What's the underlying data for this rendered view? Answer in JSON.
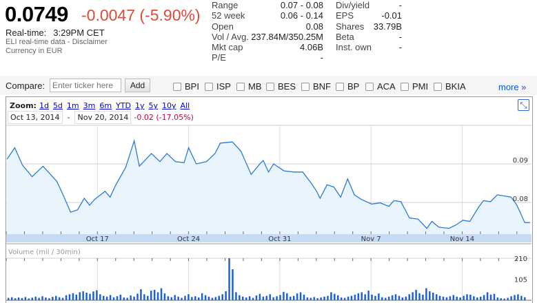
{
  "quote": {
    "price": "0.0749",
    "change": "-0.0047 (-5.90%)",
    "realtime_label": "Real-time:",
    "time": "3:29PM CET",
    "source": "ELI real-time data - Disclaimer",
    "currency": "Currency in EUR"
  },
  "stats_left": [
    {
      "label": "Range",
      "value": "0.07 - 0.08"
    },
    {
      "label": "52 week",
      "value": "0.06 - 0.14"
    },
    {
      "label": "Open",
      "value": "0.08"
    },
    {
      "label": "Vol / Avg.",
      "value": "237.84M/350.25M"
    },
    {
      "label": "Mkt cap",
      "value": "4.06B"
    },
    {
      "label": "P/E",
      "value": "-"
    }
  ],
  "stats_right": [
    {
      "label": "Div/yield",
      "value": "-"
    },
    {
      "label": "EPS",
      "value": "-0.01"
    },
    {
      "label": "Shares",
      "value": "33.79B"
    },
    {
      "label": "Beta",
      "value": "-"
    },
    {
      "label": "Inst. own",
      "value": "-"
    }
  ],
  "compare": {
    "label": "Compare:",
    "placeholder": "Enter ticker here",
    "add": "Add",
    "tickers": [
      "BPI",
      "ISP",
      "MB",
      "BES",
      "BNF",
      "BP",
      "ACA",
      "PMI",
      "BKIA"
    ],
    "more": "more »"
  },
  "chart": {
    "zoom_label": "Zoom:",
    "zoom_options": [
      "1d",
      "5d",
      "1m",
      "3m",
      "6m",
      "YTD",
      "1y",
      "5y",
      "10y",
      "All"
    ],
    "from": "Oct 13, 2014",
    "sep": "-",
    "to": "Nov 20, 2014",
    "range_change": "-0.02 (-17.05%)",
    "volume_label": "Volume (mil / 30min)"
  },
  "colors": {
    "line": "#2a7ad8",
    "fill": "#eaf4fd",
    "negative": "#dd4b39",
    "axis_band": "#c6dbf3",
    "volume": "#1a5fd8"
  },
  "chart_data": {
    "type": "line",
    "x_unit": "trading days from Oct 13, 2014",
    "xlim": [
      -1,
      27.8
    ],
    "ylim": [
      0.0718,
      0.1
    ],
    "x_ticks": [
      {
        "x": 4,
        "label": "Oct 17"
      },
      {
        "x": 9,
        "label": "Oct 24"
      },
      {
        "x": 14,
        "label": "Oct 31"
      },
      {
        "x": 19,
        "label": "Nov 7"
      },
      {
        "x": 24,
        "label": "Nov 14"
      }
    ],
    "y_ticks": [
      {
        "y": 0.09,
        "label": "0.09"
      },
      {
        "y": 0.08,
        "label": "0.08"
      }
    ],
    "x": [
      -0.96,
      -0.53,
      -0.11,
      0.42,
      1.02,
      1.77,
      2.06,
      2.53,
      2.91,
      3.28,
      3.57,
      3.85,
      4.42,
      4.7,
      4.98,
      5.55,
      6.02,
      6.3,
      6.96,
      7.43,
      7.81,
      8.28,
      8.75,
      9.0,
      9.42,
      9.98,
      10.45,
      10.74,
      11.4,
      11.87,
      12.43,
      12.91,
      13.09,
      13.38,
      13.66,
      14.23,
      14.79,
      15.26,
      15.74,
      16.02,
      16.21,
      16.59,
      16.96,
      17.34,
      17.72,
      18.09,
      18.47,
      19.04,
      19.51,
      19.98,
      20.26,
      20.64,
      21.11,
      21.58,
      22.06,
      22.34,
      22.72,
      23.28,
      23.66,
      24.04,
      24.42,
      24.89,
      25.17,
      25.55,
      25.92,
      26.68,
      26.96,
      27.15,
      27.43,
      27.72
    ],
    "price": [
      0.0912,
      0.0942,
      0.0897,
      0.0867,
      0.0894,
      0.0855,
      0.0826,
      0.0775,
      0.0781,
      0.0811,
      0.0793,
      0.0808,
      0.0829,
      0.0814,
      0.0843,
      0.0891,
      0.096,
      0.0894,
      0.0927,
      0.0906,
      0.0927,
      0.0906,
      0.0903,
      0.0942,
      0.09,
      0.0906,
      0.0927,
      0.0954,
      0.0957,
      0.0933,
      0.0873,
      0.09,
      0.0909,
      0.0879,
      0.09,
      0.0882,
      0.0879,
      0.0879,
      0.0849,
      0.0829,
      0.0811,
      0.0846,
      0.084,
      0.0814,
      0.0861,
      0.082,
      0.0808,
      0.0796,
      0.0799,
      0.079,
      0.0805,
      0.0802,
      0.076,
      0.0757,
      0.0733,
      0.0751,
      0.0736,
      0.0733,
      0.0742,
      0.0754,
      0.0751,
      0.0787,
      0.0805,
      0.0802,
      0.082,
      0.0814,
      0.0796,
      0.0778,
      0.0748,
      0.0748
    ],
    "volume": {
      "ylim": [
        0,
        210
      ],
      "y_ticks": [
        {
          "y": 210,
          "label": "210"
        },
        {
          "y": 105,
          "label": "105"
        }
      ],
      "values": [
        12,
        15,
        10,
        14,
        11,
        16,
        9,
        13,
        18,
        12,
        20,
        14,
        10,
        17,
        22,
        15,
        12,
        25,
        30,
        35,
        28,
        40,
        45,
        38,
        32,
        44,
        50,
        30,
        22,
        18,
        26,
        15,
        20,
        28,
        14,
        12,
        24,
        18,
        33,
        55,
        30,
        22,
        48,
        52,
        40,
        60,
        34,
        20,
        15,
        26,
        18,
        12,
        22,
        30,
        16,
        20,
        14,
        35,
        25,
        18,
        12,
        16,
        22,
        30,
        45,
        210,
        155,
        40,
        25,
        18,
        14,
        20,
        12,
        24,
        32,
        18,
        22,
        30,
        15,
        20,
        26,
        42,
        35,
        18,
        22,
        34,
        40,
        28,
        14,
        12,
        16,
        10,
        14,
        18,
        22,
        40,
        32,
        25,
        14,
        12,
        18,
        22,
        28,
        35,
        40,
        30,
        48,
        28,
        22,
        34,
        15,
        12,
        18,
        25,
        30,
        22,
        14,
        18,
        30,
        40,
        52,
        35,
        28,
        60,
        45,
        38,
        30,
        22,
        18,
        15,
        20,
        26,
        18,
        14,
        22,
        30,
        28,
        20,
        14,
        18,
        26,
        40,
        28,
        32,
        14,
        10,
        8,
        12,
        20,
        26,
        30,
        22,
        15
      ]
    }
  }
}
